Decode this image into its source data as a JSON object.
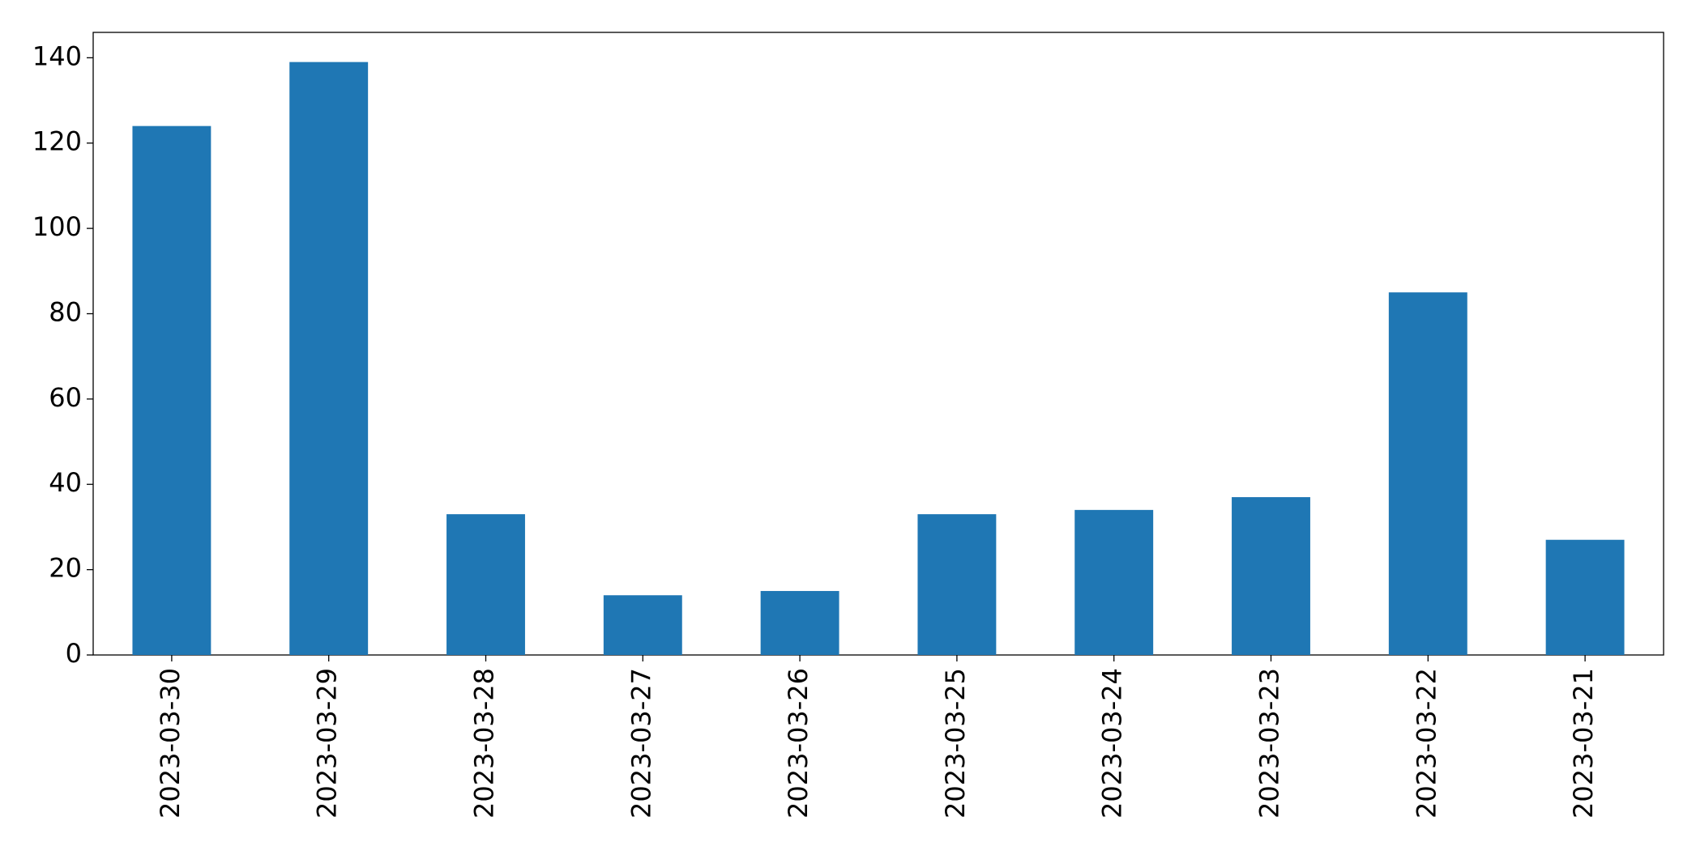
{
  "chart_data": {
    "type": "bar",
    "categories": [
      "2023-03-30",
      "2023-03-29",
      "2023-03-28",
      "2023-03-27",
      "2023-03-26",
      "2023-03-25",
      "2023-03-24",
      "2023-03-23",
      "2023-03-22",
      "2023-03-21"
    ],
    "values": [
      124,
      139,
      33,
      14,
      15,
      33,
      34,
      37,
      85,
      27
    ],
    "color": "#1f77b4",
    "ylim": [
      0,
      145.95
    ],
    "yticks": [
      0,
      20,
      40,
      60,
      80,
      100,
      120,
      140
    ],
    "grid": false
  }
}
